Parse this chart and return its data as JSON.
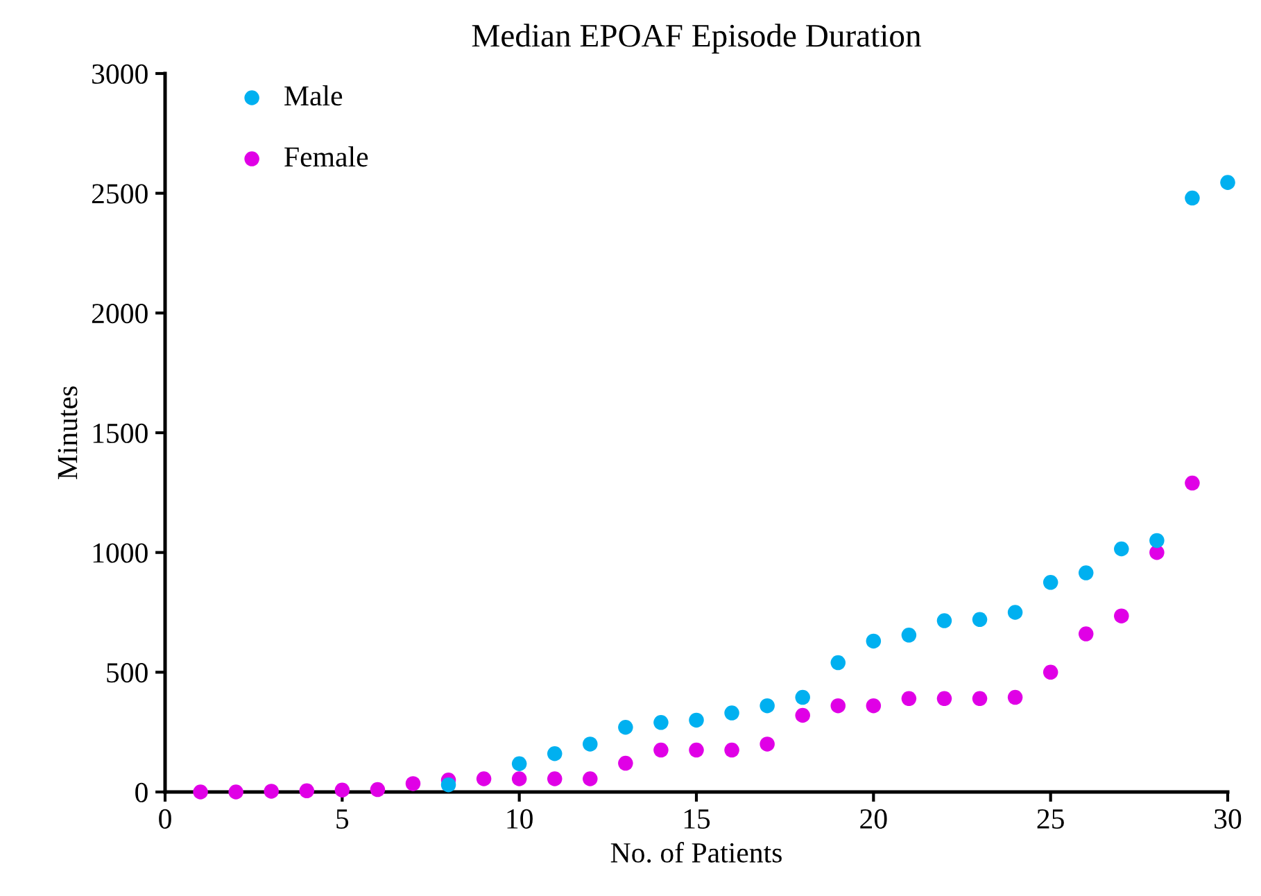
{
  "chart_data": {
    "type": "scatter",
    "title": "Median EPOAF Episode Duration",
    "xlabel": "No. of Patients",
    "ylabel": "Minutes",
    "x": [
      1,
      2,
      3,
      4,
      5,
      6,
      7,
      8,
      9,
      10,
      11,
      12,
      13,
      14,
      15,
      16,
      17,
      18,
      19,
      20,
      21,
      22,
      23,
      24,
      25,
      26,
      27,
      28,
      29,
      30
    ],
    "series": [
      {
        "name": "Male",
        "color": "#00b0f0",
        "values": [
          null,
          null,
          null,
          null,
          null,
          null,
          null,
          30,
          null,
          118,
          160,
          200,
          270,
          290,
          300,
          330,
          360,
          395,
          540,
          630,
          655,
          715,
          720,
          750,
          875,
          915,
          1015,
          1050,
          2480,
          2545
        ]
      },
      {
        "name": "Female",
        "color": "#e000e6",
        "values": [
          0,
          0,
          3,
          5,
          8,
          10,
          35,
          50,
          55,
          55,
          55,
          55,
          120,
          175,
          175,
          175,
          200,
          320,
          360,
          360,
          390,
          390,
          390,
          395,
          500,
          660,
          735,
          1000,
          1290,
          null
        ]
      }
    ],
    "xlim": [
      0,
      30
    ],
    "xticks": [
      0,
      5,
      10,
      15,
      20,
      25,
      30
    ],
    "ylim": [
      0,
      3000
    ],
    "yticks": [
      0,
      500,
      1000,
      1500,
      2000,
      2500,
      3000
    ],
    "marker": "circle",
    "legend": "top left",
    "grid": false
  }
}
